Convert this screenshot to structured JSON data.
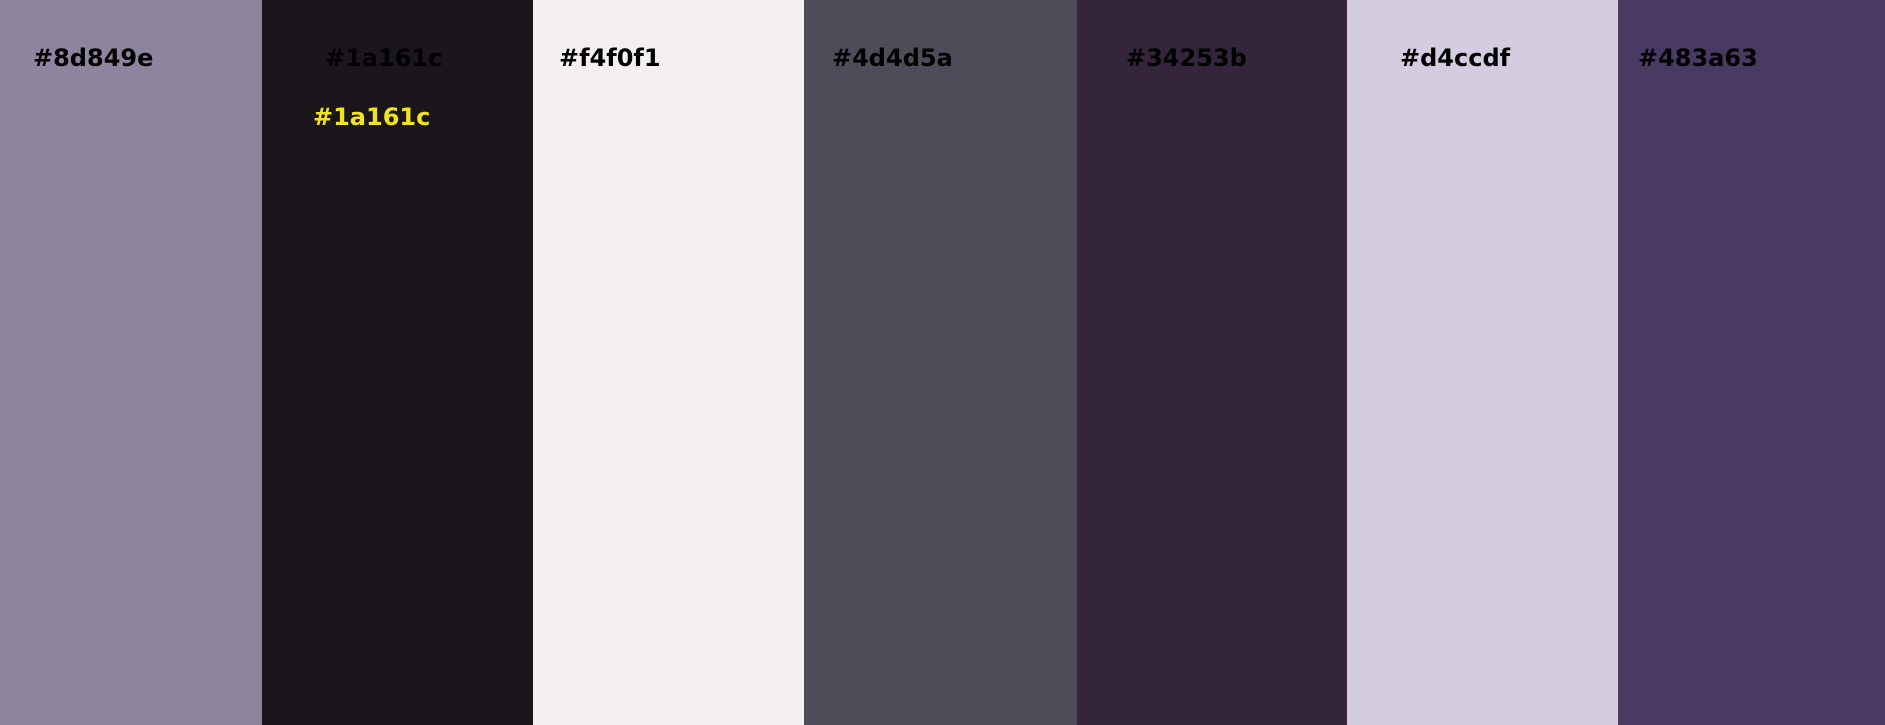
{
  "palette": {
    "swatches": [
      {
        "color": "#8d849e",
        "label": "#8d849e"
      },
      {
        "color": "#1a161c",
        "label": "#1a161c"
      },
      {
        "color": "#f4f0f1",
        "label": "#f4f0f1"
      },
      {
        "color": "#4d4d5a",
        "label": "#4d4d5a"
      },
      {
        "color": "#34253b",
        "label": "#34253b"
      },
      {
        "color": "#d4ccdf",
        "label": "#d4ccdf"
      },
      {
        "color": "#483a63",
        "label": "#483a63"
      }
    ],
    "highlight": {
      "label": "#1a161c",
      "color": "#f2e51d"
    }
  }
}
